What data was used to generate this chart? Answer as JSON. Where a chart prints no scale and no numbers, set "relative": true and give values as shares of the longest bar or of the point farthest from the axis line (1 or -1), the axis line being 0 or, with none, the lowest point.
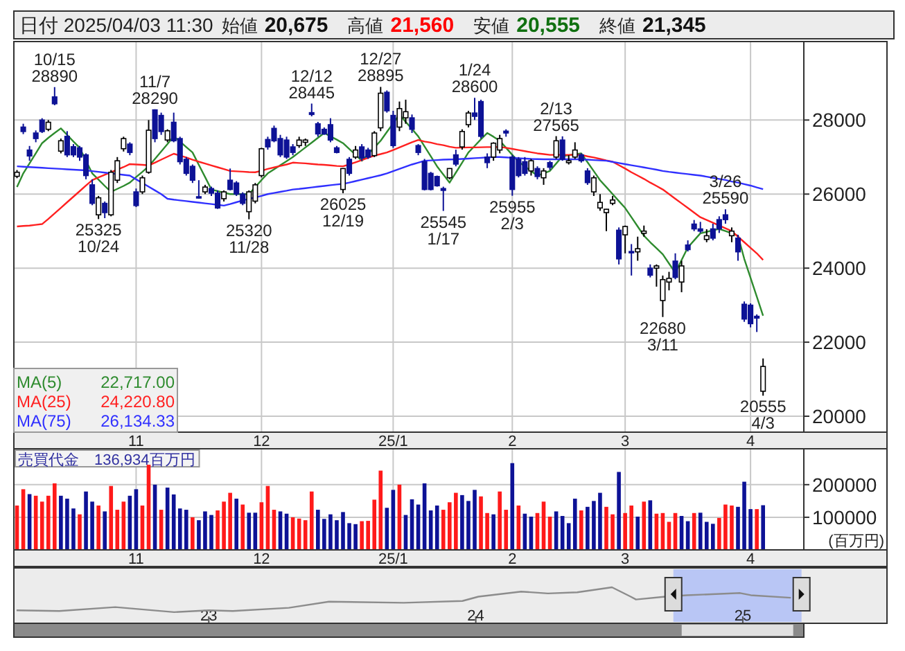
{
  "chart_data": [
    {
      "type": "candlestick",
      "title": "日付 2025/04/03 11:30",
      "categories": [
        null,
        null,
        null,
        null,
        null,
        null,
        null,
        null,
        null,
        null,
        null,
        null,
        null,
        null,
        null,
        null,
        null,
        null,
        null,
        "11",
        null,
        null,
        null,
        null,
        null,
        null,
        null,
        null,
        null,
        null,
        null,
        null,
        null,
        null,
        null,
        null,
        null,
        null,
        null,
        "12",
        null,
        null,
        null,
        null,
        null,
        null,
        null,
        null,
        null,
        null,
        null,
        null,
        null,
        null,
        null,
        null,
        null,
        null,
        null,
        null,
        "25/1",
        null,
        null,
        null,
        null,
        null,
        null,
        null,
        null,
        null,
        null,
        null,
        null,
        null,
        null,
        null,
        null,
        null,
        null,
        "2",
        null,
        null,
        null,
        null,
        null,
        null,
        null,
        null,
        null,
        null,
        null,
        null,
        null,
        null,
        null,
        null,
        null,
        "3",
        null,
        null,
        null,
        null,
        null,
        null,
        null,
        null,
        null,
        null,
        null,
        null,
        null,
        null,
        null,
        null,
        null,
        null,
        null,
        "4",
        null,
        null
      ],
      "ohlc": [
        [
          26480,
          26650,
          26430,
          26590
        ],
        [
          27810,
          27900,
          27620,
          27690
        ],
        [
          27190,
          27300,
          26900,
          27030
        ],
        [
          27650,
          27720,
          27400,
          27500
        ],
        [
          28000,
          28050,
          27650,
          27690
        ],
        [
          27750,
          28000,
          27700,
          27940
        ],
        [
          28625,
          28890,
          28400,
          28440
        ],
        [
          27160,
          27500,
          27100,
          27440
        ],
        [
          27560,
          27700,
          27000,
          27060
        ],
        [
          27280,
          27350,
          27000,
          27060
        ],
        [
          27250,
          27300,
          26900,
          27000
        ],
        [
          27060,
          27100,
          26400,
          26500
        ],
        [
          26250,
          26400,
          25700,
          25750
        ],
        [
          25440,
          25950,
          25325,
          25900
        ],
        [
          25750,
          25800,
          25350,
          25500
        ],
        [
          25440,
          26650,
          25400,
          26590
        ],
        [
          26375,
          27000,
          26300,
          26900
        ],
        [
          27225,
          27550,
          27150,
          27500
        ],
        [
          27350,
          27400,
          27050,
          27125
        ],
        [
          26060,
          26150,
          25650,
          25690
        ],
        [
          26060,
          26500,
          26000,
          26440
        ],
        [
          26590,
          28000,
          26550,
          27725
        ],
        [
          28275,
          28290,
          27400,
          27500
        ],
        [
          28125,
          28200,
          27600,
          27690
        ],
        [
          27460,
          27750,
          27400,
          27710
        ],
        [
          27940,
          28200,
          27400,
          27440
        ],
        [
          27500,
          27550,
          26800,
          26875
        ],
        [
          26940,
          27000,
          26500,
          26560
        ],
        [
          26750,
          26800,
          26300,
          26375
        ],
        [
          25930,
          26375,
          25880,
          25900
        ],
        [
          26060,
          26250,
          26000,
          26190
        ],
        [
          26150,
          26200,
          25950,
          26025
        ],
        [
          26025,
          26100,
          25600,
          25625
        ],
        [
          25875,
          26100,
          25800,
          26060
        ],
        [
          26375,
          26690,
          26100,
          26125
        ],
        [
          26300,
          26350,
          25950,
          26000
        ],
        [
          26000,
          26050,
          25700,
          25750
        ],
        [
          25525,
          26100,
          25320,
          26060
        ],
        [
          25810,
          26300,
          25750,
          26250
        ],
        [
          26500,
          27250,
          26450,
          27225
        ],
        [
          27475,
          27550,
          27200,
          27275
        ],
        [
          27775,
          27850,
          27400,
          27440
        ],
        [
          27500,
          27600,
          27000,
          27060
        ],
        [
          27460,
          27550,
          26950,
          27000
        ],
        [
          27275,
          27350,
          27050,
          27125
        ],
        [
          27310,
          27550,
          27250,
          27460
        ],
        [
          27400,
          27500,
          27300,
          27460
        ],
        [
          28200,
          28445,
          28100,
          28150
        ],
        [
          27900,
          27950,
          27550,
          27625
        ],
        [
          27750,
          27800,
          27600,
          27625
        ],
        [
          27875,
          28050,
          27400,
          27460
        ],
        [
          27250,
          27300,
          27100,
          27125
        ],
        [
          26125,
          26700,
          26025,
          26690
        ],
        [
          26940,
          27000,
          26500,
          26560
        ],
        [
          27000,
          27300,
          26950,
          27190
        ],
        [
          27275,
          27350,
          26900,
          26975
        ],
        [
          27190,
          27250,
          26950,
          27000
        ],
        [
          27040,
          27700,
          27000,
          27650
        ],
        [
          27790,
          28895,
          27700,
          28725
        ],
        [
          28750,
          28800,
          28200,
          28250
        ],
        [
          28125,
          28250,
          27250,
          27310
        ],
        [
          27810,
          28500,
          27700,
          28310
        ],
        [
          28060,
          28550,
          27900,
          28225
        ],
        [
          28060,
          28150,
          27650,
          27750
        ],
        [
          27310,
          27350,
          27050,
          27125
        ],
        [
          26875,
          26950,
          26100,
          26125
        ],
        [
          26560,
          26600,
          26100,
          26125
        ],
        [
          26475,
          26500,
          26200,
          26225
        ],
        [
          26150,
          26200,
          25545,
          26100
        ],
        [
          26440,
          26700,
          26400,
          26690
        ],
        [
          27060,
          27200,
          26750,
          26810
        ],
        [
          27275,
          27750,
          27200,
          27690
        ],
        [
          27875,
          28250,
          27800,
          28190
        ],
        [
          28190,
          28600,
          28000,
          28100
        ],
        [
          28500,
          28550,
          27500,
          27560
        ],
        [
          27000,
          27100,
          26700,
          26850
        ],
        [
          27000,
          27400,
          26900,
          27375
        ],
        [
          27190,
          27600,
          27100,
          27500
        ],
        [
          27700,
          27750,
          27550,
          27650
        ],
        [
          27000,
          27060,
          25955,
          26125
        ],
        [
          26940,
          27000,
          26450,
          26500
        ],
        [
          26875,
          27000,
          26500,
          26560
        ],
        [
          26625,
          26950,
          26500,
          26900
        ],
        [
          26690,
          26750,
          26400,
          26475
        ],
        [
          26440,
          26700,
          26250,
          26625
        ],
        [
          26850,
          26900,
          26650,
          26725
        ],
        [
          27000,
          27565,
          26950,
          27440
        ],
        [
          27460,
          27560,
          26900,
          26940
        ],
        [
          26850,
          27050,
          26800,
          26900
        ],
        [
          27000,
          27400,
          26950,
          27190
        ],
        [
          27060,
          27100,
          26850,
          26900
        ],
        [
          26625,
          26700,
          26250,
          26310
        ],
        [
          26060,
          26500,
          25950,
          26440
        ],
        [
          25625,
          26000,
          25550,
          25775
        ],
        [
          25500,
          25600,
          25000,
          25590
        ],
        [
          25750,
          25950,
          25700,
          25840
        ],
        [
          25025,
          25100,
          24100,
          24250
        ],
        [
          24900,
          25150,
          24400,
          25125
        ],
        [
          24450,
          24650,
          23800,
          24425
        ],
        [
          24440,
          24850,
          24200,
          24525
        ],
        [
          24940,
          25150,
          24850,
          25000
        ],
        [
          24000,
          24100,
          23750,
          23810
        ],
        [
          24000,
          24100,
          23500,
          24060
        ],
        [
          23125,
          23800,
          22680,
          23690
        ],
        [
          23625,
          23900,
          23400,
          23725
        ],
        [
          24190,
          24400,
          23700,
          23750
        ],
        [
          23625,
          24200,
          23350,
          24060
        ],
        [
          24625,
          24750,
          24450,
          24500
        ],
        [
          25190,
          25300,
          25000,
          25060
        ],
        [
          25060,
          25250,
          24950,
          25000
        ],
        [
          24775,
          25050,
          24700,
          24875
        ],
        [
          25060,
          25200,
          24750,
          24810
        ],
        [
          25310,
          25400,
          24950,
          25060
        ],
        [
          25440,
          25590,
          25200,
          25310
        ],
        [
          24875,
          25100,
          24700,
          25000
        ],
        [
          24810,
          24900,
          24200,
          24440
        ],
        [
          23025,
          23100,
          22550,
          22625
        ],
        [
          23000,
          23050,
          22400,
          22500
        ],
        [
          22700,
          22750,
          22275,
          22650
        ],
        [
          20675,
          21560,
          20555,
          21345
        ]
      ],
      "series": [
        {
          "type": "line",
          "name": "MA(5)",
          "color": "#2e8b2e",
          "values": [
            26190,
            26560,
            26830,
            27100,
            27375,
            27520,
            27650,
            27775,
            27600,
            27420,
            27250,
            26900,
            26560,
            26390,
            26220,
            26060,
            26140,
            26220,
            26310,
            26460,
            26600,
            26750,
            26950,
            27150,
            27350,
            27560,
            27420,
            27270,
            27125,
            26790,
            26460,
            26125,
            26080,
            26040,
            26000,
            26000,
            26000,
            26000,
            26190,
            26380,
            26560,
            26670,
            26780,
            26890,
            27000,
            27130,
            27260,
            27390,
            27520,
            27650,
            27560,
            27470,
            27375,
            27220,
            27060,
            26900,
            27080,
            27260,
            27440,
            27680,
            27910,
            28150,
            27950,
            27760,
            27560,
            27290,
            27020,
            26750,
            26530,
            26310,
            26580,
            26850,
            27125,
            27300,
            27480,
            27650,
            27550,
            27440,
            27250,
            27060,
            26875,
            26750,
            26620,
            26500,
            26560,
            26625,
            26825,
            27025,
            27050,
            27075,
            27100,
            26860,
            26620,
            26375,
            26190,
            26000,
            25810,
            25625,
            25375,
            25125,
            24875,
            24700,
            24540,
            24375,
            24125,
            23875,
            24220,
            24560,
            24750,
            24940,
            24980,
            25020,
            25060,
            25000,
            24940,
            24875,
            24250,
            23740,
            23230,
            22717
          ]
        },
        {
          "type": "line",
          "name": "MA(25)",
          "color": "#ff2020",
          "values": [
            25125,
            25140,
            25150,
            25170,
            25190,
            25330,
            25480,
            25630,
            25780,
            25930,
            26080,
            26230,
            26375,
            26450,
            26520,
            26590,
            26660,
            26730,
            26810,
            26800,
            26790,
            26775,
            26850,
            26930,
            27010,
            27090,
            27040,
            26990,
            26930,
            26875,
            26825,
            26775,
            26725,
            26675,
            26625,
            26615,
            26605,
            26595,
            26590,
            26630,
            26680,
            26720,
            26760,
            26800,
            26850,
            26840,
            26830,
            26815,
            26800,
            26790,
            26775,
            26760,
            26750,
            26800,
            26860,
            26920,
            26980,
            27040,
            27080,
            27125,
            27190,
            27260,
            27330,
            27400,
            27460,
            27420,
            27390,
            27350,
            27320,
            27280,
            27250,
            27255,
            27260,
            27260,
            27265,
            27270,
            27270,
            27275,
            27250,
            27220,
            27190,
            27160,
            27130,
            27100,
            27080,
            27060,
            27060,
            27060,
            27060,
            27060,
            27060,
            27020,
            26990,
            26950,
            26910,
            26875,
            26780,
            26690,
            26590,
            26500,
            26410,
            26310,
            26220,
            26125,
            26000,
            25875,
            25750,
            25625,
            25500,
            25375,
            25300,
            25225,
            25150,
            25075,
            25000,
            24850,
            24700,
            24550,
            24400,
            24221
          ]
        },
        {
          "type": "line",
          "name": "MA(75)",
          "color": "#3030ff",
          "values": [
            26750,
            26740,
            26730,
            26720,
            26710,
            26700,
            26690,
            26680,
            26670,
            26660,
            26650,
            26640,
            26620,
            26600,
            26580,
            26560,
            26540,
            26520,
            26500,
            26400,
            26300,
            26200,
            26100,
            26000,
            25875,
            25850,
            25830,
            25810,
            25790,
            25770,
            25750,
            25730,
            25710,
            25690,
            25730,
            25780,
            25830,
            25870,
            25910,
            25950,
            26000,
            26030,
            26060,
            26090,
            26125,
            26140,
            26160,
            26180,
            26200,
            26220,
            26240,
            26260,
            26275,
            26310,
            26350,
            26390,
            26430,
            26470,
            26510,
            26560,
            26620,
            26680,
            26740,
            26800,
            26850,
            26900,
            26910,
            26920,
            26930,
            26935,
            26940,
            26950,
            26960,
            26970,
            26980,
            26990,
            27000,
            27000,
            26990,
            26980,
            26970,
            26960,
            26950,
            26945,
            26940,
            26940,
            26940,
            26940,
            26940,
            26940,
            26940,
            26930,
            26920,
            26910,
            26900,
            26870,
            26840,
            26810,
            26780,
            26750,
            26720,
            26690,
            26660,
            26625,
            26600,
            26580,
            26560,
            26540,
            26520,
            26500,
            26470,
            26440,
            26410,
            26380,
            26340,
            26310,
            26270,
            26230,
            26180,
            26134
          ]
        }
      ],
      "ylim": [
        19570,
        30120
      ],
      "yticks": [
        20000,
        22000,
        24000,
        26000,
        28000
      ],
      "grid": true,
      "legend": "bottom left",
      "annotations": [
        "始値",
        "20,675",
        "高値",
        "21,560",
        "安値",
        "20,555",
        "終値",
        "21,345",
        "22,717.00",
        "24,220.80",
        "26,134.33",
        {
          "text": "10/15",
          "y": 28890
        },
        {
          "text": "28890",
          "y": 28890
        },
        {
          "text": "11/7",
          "y": 28290
        },
        {
          "text": "28290",
          "y": 28290
        },
        {
          "text": "12/12",
          "y": 28445
        },
        {
          "text": "28445",
          "y": 28445
        },
        {
          "text": "12/27",
          "y": 28895
        },
        {
          "text": "28895",
          "y": 28895
        },
        {
          "text": "1/24",
          "y": 28600
        },
        {
          "text": "28600",
          "y": 28600
        },
        {
          "text": "2/13",
          "y": 27565
        },
        {
          "text": "27565",
          "y": 27565
        },
        {
          "text": "3/26",
          "y": 25590
        },
        {
          "text": "25590",
          "y": 25590
        },
        {
          "text": "25325",
          "y": 25325
        },
        {
          "text": "10/24",
          "y": 25325
        },
        {
          "text": "25320",
          "y": 25320
        },
        {
          "text": "11/28",
          "y": 25320
        },
        {
          "text": "26025",
          "y": 26025
        },
        {
          "text": "12/19",
          "y": 26025
        },
        {
          "text": "25545",
          "y": 25545
        },
        {
          "text": "1/17",
          "y": 25545
        },
        {
          "text": "25955",
          "y": 25955
        },
        {
          "text": "2/3",
          "y": 25955
        },
        {
          "text": "22680",
          "y": 22680
        },
        {
          "text": "3/11",
          "y": 22680
        },
        {
          "text": "20555",
          "y": 20555
        },
        {
          "text": "4/3",
          "y": 20555
        }
      ]
    },
    {
      "type": "bar",
      "title": "売買代金　136,934百万円",
      "ylabel": "(百万円)",
      "categories": [
        null,
        null,
        null,
        null,
        null,
        null,
        null,
        null,
        null,
        null,
        null,
        null,
        null,
        null,
        null,
        null,
        null,
        null,
        null,
        "11",
        null,
        null,
        null,
        null,
        null,
        null,
        null,
        null,
        null,
        null,
        null,
        null,
        null,
        null,
        null,
        null,
        null,
        null,
        null,
        "12",
        null,
        null,
        null,
        null,
        null,
        null,
        null,
        null,
        null,
        null,
        null,
        null,
        null,
        null,
        null,
        null,
        null,
        null,
        null,
        null,
        "25/1",
        null,
        null,
        null,
        null,
        null,
        null,
        null,
        null,
        null,
        null,
        null,
        null,
        null,
        null,
        null,
        null,
        null,
        null,
        "2",
        null,
        null,
        null,
        null,
        null,
        null,
        null,
        null,
        null,
        null,
        null,
        null,
        null,
        null,
        null,
        null,
        null,
        "3",
        null,
        null,
        null,
        null,
        null,
        null,
        null,
        null,
        null,
        null,
        null,
        null,
        null,
        null,
        null,
        null,
        null,
        null,
        null,
        "4",
        null,
        null
      ],
      "values": [
        136000,
        186000,
        171000,
        166000,
        148000,
        166000,
        204000,
        166000,
        157000,
        127000,
        109000,
        179000,
        148000,
        136000,
        118000,
        196000,
        123000,
        148000,
        166000,
        186000,
        136000,
        261000,
        200000,
        123000,
        191000,
        170000,
        127000,
        123000,
        100000,
        91000,
        118000,
        107000,
        121000,
        148000,
        175000,
        157000,
        139000,
        114000,
        114000,
        146000,
        196000,
        123000,
        118000,
        111000,
        100000,
        96000,
        91000,
        179000,
        123000,
        95000,
        109000,
        91000,
        116000,
        82000,
        79000,
        88000,
        89000,
        154000,
        243000,
        129000,
        184000,
        200000,
        107000,
        155000,
        139000,
        204000,
        121000,
        136000,
        123000,
        146000,
        175000,
        168000,
        150000,
        184000,
        164000,
        113000,
        109000,
        179000,
        123000,
        266000,
        136000,
        111000,
        102000,
        113000,
        148000,
        102000,
        118000,
        104000,
        82000,
        157000,
        121000,
        132000,
        150000,
        175000,
        132000,
        109000,
        239000,
        113000,
        136000,
        102000,
        148000,
        152000,
        111000,
        113000,
        86000,
        113000,
        104000,
        88000,
        113000,
        114000,
        86000,
        80000,
        98000,
        139000,
        136000,
        132000,
        209000,
        125000,
        125000,
        136934
      ],
      "colors": [
        "#ff1a1a",
        "#ff1a1a",
        "#0d1296",
        "#ff1a1a",
        "#ff1a1a",
        "#ff1a1a",
        "#ff1a1a",
        "#0d1296",
        "#0d1296",
        "#0d1296",
        "#ff1a1a",
        "#0d1296",
        "#0d1296",
        "#ff1a1a",
        "#0d1296",
        "#ff1a1a",
        "#ff1a1a",
        "#ff1a1a",
        "#0d1296",
        "#0d1296",
        "#ff1a1a",
        "#ff1a1a",
        "#0d1296",
        "#ff1a1a",
        "#0d1296",
        "#0d1296",
        "#0d1296",
        "#0d1296",
        "#ff1a1a",
        "#0d1296",
        "#0d1296",
        "#0d1296",
        "#ff1a1a",
        "#ff1a1a",
        "#ff1a1a",
        "#0d1296",
        "#ff1a1a",
        "#0d1296",
        "#0d1296",
        "#ff1a1a",
        "#ff1a1a",
        "#ff1a1a",
        "#0d1296",
        "#0d1296",
        "#ff1a1a",
        "#ff1a1a",
        "#ff1a1a",
        "#ff1a1a",
        "#0d1296",
        "#0d1296",
        "#0d1296",
        "#0d1296",
        "#0d1296",
        "#0d1296",
        "#0d1296",
        "#ff1a1a",
        "#ff1a1a",
        "#ff1a1a",
        "#ff1a1a",
        "#0d1296",
        "#0d1296",
        "#ff1a1a",
        "#0d1296",
        "#0d1296",
        "#0d1296",
        "#0d1296",
        "#0d1296",
        "#0d1296",
        "#ff1a1a",
        "#ff1a1a",
        "#ff1a1a",
        "#0d1296",
        "#0d1296",
        "#0d1296",
        "#ff1a1a",
        "#ff1a1a",
        "#0d1296",
        "#ff1a1a",
        "#ff1a1a",
        "#0d1296",
        "#ff1a1a",
        "#0d1296",
        "#0d1296",
        "#ff1a1a",
        "#ff1a1a",
        "#ff1a1a",
        "#0d1296",
        "#0d1296",
        "#0d1296",
        "#0d1296",
        "#ff1a1a",
        "#0d1296",
        "#0d1296",
        "#0d1296",
        "#ff1a1a",
        "#ff1a1a",
        "#0d1296",
        "#ff1a1a",
        "#ff1a1a",
        "#0d1296",
        "#ff1a1a",
        "#0d1296",
        "#ff1a1a",
        "#ff1a1a",
        "#ff1a1a",
        "#ff1a1a",
        "#0d1296",
        "#0d1296",
        "#ff1a1a",
        "#0d1296",
        "#0d1296",
        "#0d1296",
        "#ff1a1a",
        "#ff1a1a",
        "#ff1a1a",
        "#0d1296",
        "#0d1296",
        "#0d1296",
        "#ff1a1a",
        "#0d1296"
      ],
      "ylim": [
        0,
        310000
      ],
      "yticks": [
        100000,
        200000
      ],
      "grid": true
    },
    {
      "type": "line",
      "relative": true,
      "x": [
        2022.28,
        2022.44,
        2022.65,
        2022.87,
        2023.0,
        2023.09,
        2023.3,
        2023.45,
        2023.73,
        2023.95,
        2024.01,
        2024.17,
        2024.27,
        2024.38,
        2024.51,
        2024.58,
        2024.6,
        2024.71,
        2024.79,
        2024.99,
        2025.03,
        2025.18
      ],
      "series": [
        {
          "color": "#8c8c8c",
          "values": [
            0.36,
            0.34,
            0.45,
            0.31,
            0.36,
            0.34,
            0.43,
            0.6,
            0.57,
            0.62,
            0.74,
            0.88,
            0.83,
            0.86,
            1,
            0.74,
            0.66,
            0.74,
            0.78,
            0.84,
            0.78,
            0.71
          ]
        }
      ],
      "xlim": [
        2022.27,
        2025.54
      ],
      "xticks": [
        {
          "value": 2023,
          "label": "23"
        },
        {
          "value": 2024,
          "label": "24"
        },
        {
          "value": 2025,
          "label": "25"
        }
      ],
      "bands": [
        {
          "axis": "x",
          "from": 2024.74,
          "to": 2025.22,
          "color": "#b9c6f5"
        }
      ]
    }
  ]
}
